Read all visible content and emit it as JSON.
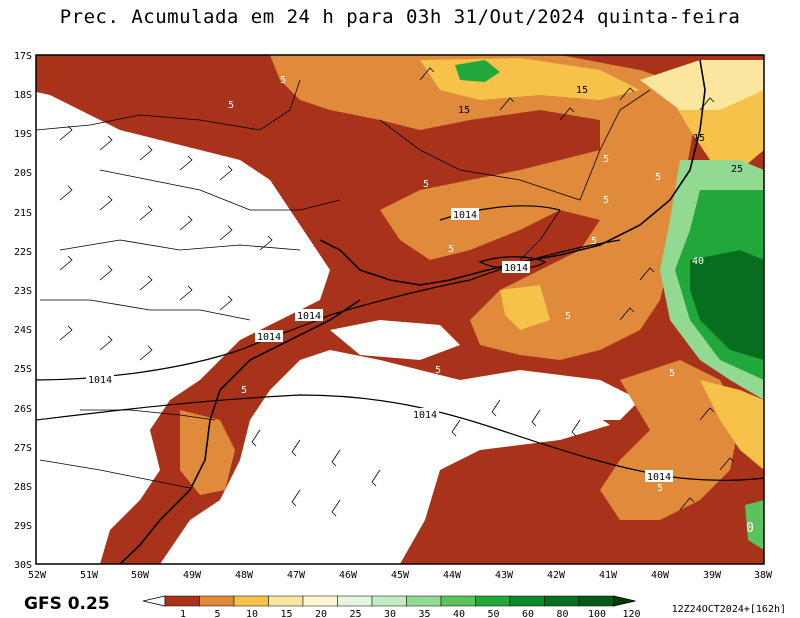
{
  "title": "Prec. Acumulada em 24 h para 03h 31/Out/2024 quinta-feira",
  "model_label": "GFS 0.25",
  "run_stamp": "12Z24OCT2024+[162h]",
  "latitudes": [
    "17S",
    "18S",
    "19S",
    "20S",
    "21S",
    "22S",
    "23S",
    "24S",
    "25S",
    "26S",
    "27S",
    "28S",
    "29S",
    "30S"
  ],
  "longitudes": [
    "52W",
    "51W",
    "50W",
    "49W",
    "48W",
    "47W",
    "46W",
    "45W",
    "44W",
    "43W",
    "42W",
    "41W",
    "40W",
    "39W",
    "38W"
  ],
  "legend": {
    "levels": [
      "1",
      "5",
      "10",
      "15",
      "20",
      "25",
      "30",
      "35",
      "40",
      "50",
      "60",
      "80",
      "100",
      "120"
    ],
    "colors": [
      "#a8321a",
      "#e08a3c",
      "#f6c24a",
      "#fbe6a0",
      "#fdf7d2",
      "#e6f6e3",
      "#c4ecc4",
      "#92d992",
      "#5cc25c",
      "#22a83a",
      "#0e8a2a",
      "#066e1e",
      "#045a16",
      "#023c0c"
    ]
  },
  "contour_labels": {
    "isobar": [
      "1014",
      "1014",
      "1014",
      "1014",
      "1014",
      "1014",
      "1014"
    ],
    "precip": [
      "5",
      "5",
      "5",
      "5",
      "5",
      "5",
      "5",
      "5",
      "5",
      "5",
      "5",
      "5",
      "5",
      "15",
      "15",
      "15",
      "25",
      "40",
      "0"
    ]
  }
}
